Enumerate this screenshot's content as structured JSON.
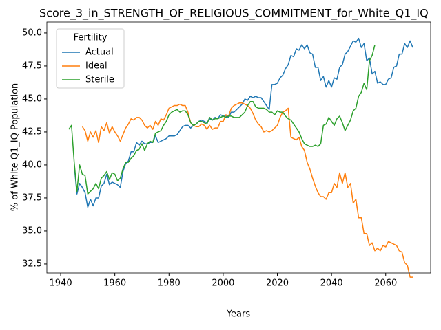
{
  "chart_data": {
    "type": "line",
    "title": "Score_3_in_STRENGTH_OF_RELIGIOUS_COMMITMENT_for_White_Q1_IQ",
    "xlabel": "Years",
    "ylabel": "% of White Q1_IQ Population",
    "legend_title": "Fertility",
    "legend": "upper left",
    "xlim": [
      1934.9,
      2076.6
    ],
    "ylim": [
      31.82,
      50.83
    ],
    "xticks": [
      1940,
      1960,
      1980,
      2000,
      2020,
      2040,
      2060
    ],
    "yticks": [
      32.5,
      {
        "value": 35,
        "label": "35.0"
      },
      37.5,
      {
        "value": 40,
        "label": "40.0"
      },
      42.5,
      {
        "value": 45,
        "label": "45.0"
      },
      47.5,
      {
        "value": 50,
        "label": "50.0"
      }
    ],
    "x": [
      1943,
      1944,
      1945,
      1946,
      1947,
      1948,
      1949,
      1950,
      1951,
      1952,
      1953,
      1954,
      1955,
      1956,
      1957,
      1958,
      1959,
      1960,
      1961,
      1962,
      1963,
      1964,
      1965,
      1966,
      1967,
      1968,
      1969,
      1970,
      1971,
      1972,
      1973,
      1974,
      1975,
      1976,
      1977,
      1978,
      1979,
      1980,
      1981,
      1982,
      1983,
      1984,
      1985,
      1986,
      1987,
      1988,
      1989,
      1990,
      1991,
      1992,
      1993,
      1994,
      1995,
      1996,
      1997,
      1998,
      1999,
      2000,
      2001,
      2002,
      2003,
      2004,
      2005,
      2006,
      2007,
      2008,
      2009,
      2010,
      2011,
      2012,
      2013,
      2014,
      2015,
      2016,
      2017,
      2018,
      2019,
      2020,
      2021,
      2022,
      2023,
      2024,
      2025,
      2026,
      2027,
      2028,
      2029,
      2030,
      2031,
      2032,
      2033,
      2034,
      2035,
      2036,
      2037,
      2038,
      2039,
      2040,
      2041,
      2042,
      2043,
      2044,
      2045,
      2046,
      2047,
      2048,
      2049,
      2050,
      2051,
      2052,
      2053,
      2054,
      2055,
      2056,
      2057,
      2058,
      2059,
      2060,
      2061,
      2062,
      2063,
      2064,
      2065,
      2066,
      2067,
      2068,
      2069,
      2070
    ],
    "series": [
      {
        "name": "Actual",
        "color": "#1f77b4",
        "values": [
          null,
          null,
          40.0,
          37.8,
          38.6,
          38.3,
          37.9,
          36.8,
          37.4,
          36.9,
          37.5,
          37.5,
          38.4,
          38.6,
          39.3,
          38.5,
          38.7,
          38.6,
          38.5,
          38.3,
          39.5,
          40.1,
          40.3,
          41.0,
          41.0,
          41.7,
          41.5,
          41.8,
          41.6,
          41.6,
          41.7,
          41.7,
          42.2,
          41.7,
          41.8,
          41.9,
          42.0,
          42.2,
          42.2,
          42.2,
          42.3,
          42.6,
          42.9,
          43.0,
          43.0,
          42.8,
          43.0,
          43.1,
          43.3,
          43.4,
          43.3,
          43.2,
          43.5,
          43.4,
          43.6,
          43.5,
          43.8,
          43.7,
          43.7,
          43.6,
          44.0,
          44.0,
          44.2,
          44.4,
          44.6,
          45.0,
          44.9,
          45.2,
          45.1,
          45.2,
          45.1,
          45.1,
          44.8,
          44.5,
          44.2,
          46.1,
          46.1,
          46.2,
          46.6,
          46.8,
          47.3,
          47.6,
          48.3,
          48.2,
          48.8,
          48.7,
          49.1,
          48.8,
          49.1,
          48.5,
          48.4,
          47.4,
          47.4,
          46.4,
          46.7,
          45.9,
          46.4,
          45.9,
          46.6,
          46.5,
          47.4,
          47.6,
          48.4,
          48.6,
          49.0,
          49.4,
          49.3,
          49.6,
          48.9,
          49.2,
          47.9,
          48.1,
          46.9,
          47.1,
          46.2,
          46.3,
          46.1,
          46.1,
          46.5,
          46.6,
          47.4,
          47.5,
          48.4,
          48.4,
          49.2,
          48.9,
          49.4,
          48.9
        ]
      },
      {
        "name": "Ideal",
        "color": "#ff7f0e",
        "values": [
          null,
          null,
          null,
          null,
          null,
          42.9,
          42.6,
          41.8,
          42.5,
          42.1,
          42.6,
          41.7,
          42.9,
          42.6,
          43.2,
          42.4,
          42.9,
          42.5,
          42.2,
          41.8,
          42.3,
          42.8,
          43.1,
          43.5,
          43.4,
          43.6,
          43.6,
          43.4,
          43.0,
          42.8,
          43.0,
          42.7,
          43.3,
          43.0,
          43.5,
          43.4,
          43.8,
          44.3,
          44.4,
          44.5,
          44.5,
          44.6,
          44.5,
          44.5,
          44.0,
          43.2,
          43.0,
          42.9,
          42.9,
          43.1,
          43.0,
          42.7,
          43.0,
          42.7,
          42.8,
          42.8,
          43.3,
          43.3,
          43.8,
          43.7,
          44.3,
          44.5,
          44.6,
          44.7,
          44.7,
          44.6,
          44.5,
          44.3,
          43.9,
          43.4,
          43.1,
          42.9,
          42.5,
          42.6,
          42.5,
          42.6,
          42.8,
          43.0,
          43.6,
          44.0,
          44.1,
          44.3,
          42.1,
          42.0,
          41.9,
          42.1,
          41.4,
          41.1,
          40.2,
          39.7,
          39.0,
          38.4,
          37.9,
          37.6,
          37.6,
          37.4,
          37.9,
          37.9,
          38.6,
          38.3,
          39.4,
          38.6,
          39.4,
          38.3,
          38.6,
          37.1,
          37.4,
          36.0,
          36.0,
          34.8,
          34.8,
          33.9,
          34.1,
          33.5,
          33.7,
          33.5,
          33.9,
          33.8,
          34.2,
          34.1,
          34.0,
          33.9,
          33.5,
          33.4,
          32.6,
          32.4,
          31.5,
          31.5
        ]
      },
      {
        "name": "Sterile",
        "color": "#2ca02c",
        "values": [
          42.7,
          43.0,
          40.2,
          38.0,
          40.0,
          39.3,
          39.2,
          37.8,
          38.0,
          38.2,
          38.6,
          38.2,
          39.0,
          39.2,
          39.5,
          38.9,
          39.4,
          39.3,
          38.8,
          39.0,
          39.7,
          40.2,
          40.2,
          40.5,
          40.7,
          41.1,
          41.2,
          41.6,
          41.1,
          41.6,
          41.8,
          41.7,
          42.4,
          42.5,
          42.6,
          43.0,
          43.3,
          43.8,
          44.0,
          44.1,
          44.2,
          44.0,
          44.1,
          44.1,
          43.8,
          43.2,
          43.0,
          43.1,
          43.3,
          43.3,
          43.2,
          43.1,
          43.6,
          43.4,
          43.5,
          43.5,
          43.6,
          43.7,
          43.6,
          43.7,
          43.7,
          43.6,
          43.6,
          43.6,
          43.8,
          44.0,
          44.5,
          44.8,
          44.8,
          44.4,
          44.3,
          44.3,
          44.3,
          44.2,
          44.0,
          44.0,
          43.8,
          44.1,
          44.0,
          44.0,
          43.7,
          43.5,
          43.4,
          43.1,
          42.8,
          42.5,
          42.0,
          41.6,
          41.5,
          41.4,
          41.4,
          41.5,
          41.4,
          41.6,
          43.0,
          43.1,
          43.6,
          43.3,
          43.0,
          43.5,
          43.7,
          43.2,
          42.6,
          43.0,
          43.4,
          44.1,
          44.3,
          45.2,
          45.5,
          46.2,
          45.7,
          47.9,
          48.3,
          49.1,
          null,
          null,
          null,
          null,
          null,
          null,
          null,
          null,
          null,
          null,
          null,
          null,
          null,
          null
        ]
      }
    ]
  }
}
